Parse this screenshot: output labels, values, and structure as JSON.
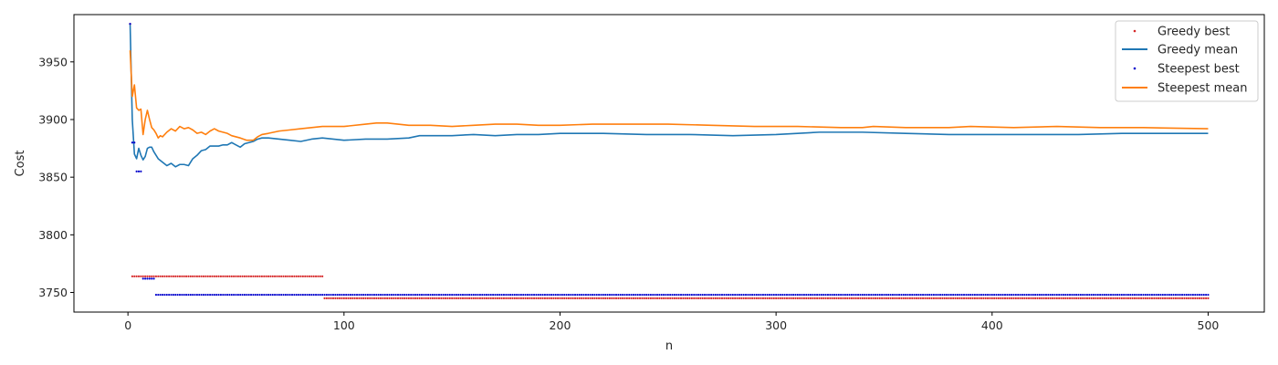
{
  "chart_data": {
    "type": "line",
    "xlabel": "n",
    "ylabel": "Cost",
    "xlim": [
      -25,
      526
    ],
    "ylim": [
      3733,
      3991
    ],
    "x_ticks": [
      0,
      100,
      200,
      300,
      400,
      500
    ],
    "y_ticks": [
      3750,
      3800,
      3850,
      3900,
      3950
    ],
    "legend_position": "top-right",
    "series": [
      {
        "name": "Greedy best",
        "style": "points",
        "color": "#d62728",
        "segments": [
          {
            "x_start": 2,
            "x_end": 90,
            "value": 3764
          },
          {
            "x_start": 91,
            "x_end": 500,
            "value": 3745
          }
        ],
        "points": [
          [
            1,
            3983
          ]
        ]
      },
      {
        "name": "Greedy mean",
        "style": "line",
        "color": "#1f77b4",
        "points": [
          [
            1,
            3983
          ],
          [
            2,
            3900
          ],
          [
            3,
            3870
          ],
          [
            4,
            3866
          ],
          [
            5,
            3875
          ],
          [
            6,
            3869
          ],
          [
            7,
            3865
          ],
          [
            8,
            3868
          ],
          [
            9,
            3875
          ],
          [
            10,
            3876
          ],
          [
            11,
            3876
          ],
          [
            12,
            3872
          ],
          [
            14,
            3866
          ],
          [
            16,
            3863
          ],
          [
            18,
            3860
          ],
          [
            20,
            3862
          ],
          [
            22,
            3859
          ],
          [
            24,
            3861
          ],
          [
            26,
            3861
          ],
          [
            28,
            3860
          ],
          [
            30,
            3866
          ],
          [
            32,
            3869
          ],
          [
            34,
            3873
          ],
          [
            36,
            3874
          ],
          [
            38,
            3877
          ],
          [
            40,
            3877
          ],
          [
            42,
            3877
          ],
          [
            44,
            3878
          ],
          [
            46,
            3878
          ],
          [
            48,
            3880
          ],
          [
            50,
            3878
          ],
          [
            52,
            3876
          ],
          [
            54,
            3879
          ],
          [
            56,
            3880
          ],
          [
            58,
            3881
          ],
          [
            60,
            3883
          ],
          [
            62,
            3884
          ],
          [
            65,
            3884
          ],
          [
            70,
            3883
          ],
          [
            75,
            3882
          ],
          [
            80,
            3881
          ],
          [
            85,
            3883
          ],
          [
            90,
            3884
          ],
          [
            95,
            3883
          ],
          [
            100,
            3882
          ],
          [
            110,
            3883
          ],
          [
            120,
            3883
          ],
          [
            130,
            3884
          ],
          [
            135,
            3886
          ],
          [
            150,
            3886
          ],
          [
            160,
            3887
          ],
          [
            170,
            3886
          ],
          [
            180,
            3887
          ],
          [
            190,
            3887
          ],
          [
            200,
            3888
          ],
          [
            220,
            3888
          ],
          [
            240,
            3887
          ],
          [
            260,
            3887
          ],
          [
            280,
            3886
          ],
          [
            300,
            3887
          ],
          [
            320,
            3889
          ],
          [
            340,
            3889
          ],
          [
            360,
            3888
          ],
          [
            380,
            3887
          ],
          [
            400,
            3887
          ],
          [
            420,
            3887
          ],
          [
            440,
            3887
          ],
          [
            460,
            3888
          ],
          [
            480,
            3888
          ],
          [
            500,
            3888
          ]
        ]
      },
      {
        "name": "Steepest best",
        "style": "points",
        "color": "#0000cc",
        "segments": [
          {
            "x_start": 4,
            "x_end": 6,
            "value": 3855
          },
          {
            "x_start": 7,
            "x_end": 12,
            "value": 3762
          },
          {
            "x_start": 13,
            "x_end": 500,
            "value": 3748
          }
        ],
        "points": [
          [
            1,
            3983
          ],
          [
            2,
            3880
          ],
          [
            3,
            3880
          ]
        ]
      },
      {
        "name": "Steepest mean",
        "style": "line",
        "color": "#ff7f0e",
        "points": [
          [
            1,
            3960
          ],
          [
            2,
            3920
          ],
          [
            3,
            3930
          ],
          [
            4,
            3910
          ],
          [
            5,
            3908
          ],
          [
            6,
            3909
          ],
          [
            7,
            3887
          ],
          [
            8,
            3900
          ],
          [
            9,
            3908
          ],
          [
            10,
            3900
          ],
          [
            11,
            3893
          ],
          [
            12,
            3891
          ],
          [
            13,
            3888
          ],
          [
            14,
            3884
          ],
          [
            15,
            3886
          ],
          [
            16,
            3885
          ],
          [
            18,
            3889
          ],
          [
            20,
            3892
          ],
          [
            22,
            3890
          ],
          [
            24,
            3894
          ],
          [
            26,
            3892
          ],
          [
            28,
            3893
          ],
          [
            30,
            3891
          ],
          [
            32,
            3888
          ],
          [
            34,
            3889
          ],
          [
            36,
            3887
          ],
          [
            38,
            3890
          ],
          [
            40,
            3892
          ],
          [
            42,
            3890
          ],
          [
            44,
            3889
          ],
          [
            46,
            3888
          ],
          [
            48,
            3886
          ],
          [
            50,
            3885
          ],
          [
            52,
            3884
          ],
          [
            55,
            3882
          ],
          [
            58,
            3882
          ],
          [
            60,
            3885
          ],
          [
            62,
            3887
          ],
          [
            65,
            3888
          ],
          [
            70,
            3890
          ],
          [
            75,
            3891
          ],
          [
            80,
            3892
          ],
          [
            85,
            3893
          ],
          [
            90,
            3894
          ],
          [
            100,
            3894
          ],
          [
            110,
            3896
          ],
          [
            115,
            3897
          ],
          [
            120,
            3897
          ],
          [
            130,
            3895
          ],
          [
            140,
            3895
          ],
          [
            150,
            3894
          ],
          [
            160,
            3895
          ],
          [
            170,
            3896
          ],
          [
            180,
            3896
          ],
          [
            190,
            3895
          ],
          [
            200,
            3895
          ],
          [
            215,
            3896
          ],
          [
            230,
            3896
          ],
          [
            250,
            3896
          ],
          [
            270,
            3895
          ],
          [
            290,
            3894
          ],
          [
            310,
            3894
          ],
          [
            330,
            3893
          ],
          [
            340,
            3893
          ],
          [
            345,
            3894
          ],
          [
            360,
            3893
          ],
          [
            380,
            3893
          ],
          [
            390,
            3894
          ],
          [
            410,
            3893
          ],
          [
            430,
            3894
          ],
          [
            450,
            3893
          ],
          [
            470,
            3893
          ],
          [
            500,
            3892
          ]
        ]
      }
    ]
  }
}
